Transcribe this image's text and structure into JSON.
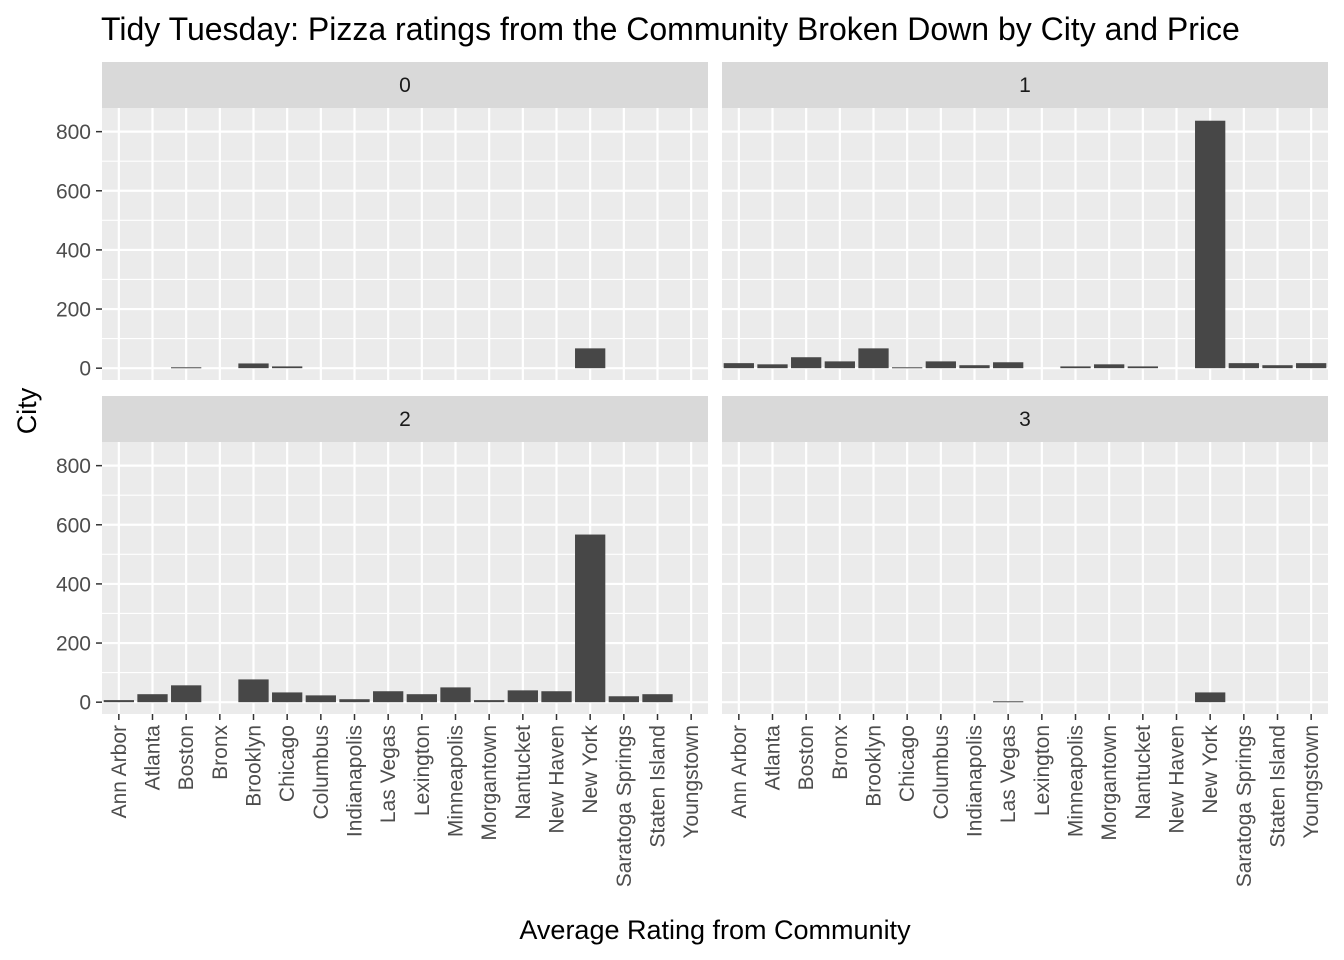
{
  "chart_data": {
    "type": "bar",
    "title": "Tidy Tuesday: Pizza ratings from the Community Broken Down by City and Price",
    "xlabel": "Average Rating from Community",
    "ylabel": "City",
    "categories": [
      "Ann Arbor",
      "Atlanta",
      "Boston",
      "Bronx",
      "Brooklyn",
      "Chicago",
      "Columbus",
      "Indianapolis",
      "Las Vegas",
      "Lexington",
      "Minneapolis",
      "Morgantown",
      "Nantucket",
      "New Haven",
      "New York",
      "Saratoga Springs",
      "Staten Island",
      "Youngstown"
    ],
    "yticks": [
      0,
      200,
      400,
      600,
      800
    ],
    "ylim": [
      -40,
      880
    ],
    "grid": true,
    "panels": [
      {
        "strip": "0",
        "values": [
          0,
          0,
          3,
          0,
          16,
          6,
          0,
          0,
          0,
          0,
          0,
          0,
          0,
          0,
          67,
          0,
          0,
          0
        ]
      },
      {
        "strip": "1",
        "values": [
          17,
          13,
          37,
          23,
          67,
          3,
          23,
          10,
          20,
          0,
          6,
          13,
          6,
          0,
          837,
          17,
          10,
          17
        ]
      },
      {
        "strip": "2",
        "values": [
          7,
          27,
          57,
          0,
          77,
          33,
          23,
          10,
          37,
          27,
          50,
          7,
          40,
          37,
          567,
          20,
          27,
          0
        ]
      },
      {
        "strip": "3",
        "values": [
          0,
          0,
          0,
          0,
          0,
          0,
          0,
          0,
          3,
          0,
          0,
          0,
          0,
          0,
          33,
          0,
          0,
          0
        ]
      }
    ]
  }
}
